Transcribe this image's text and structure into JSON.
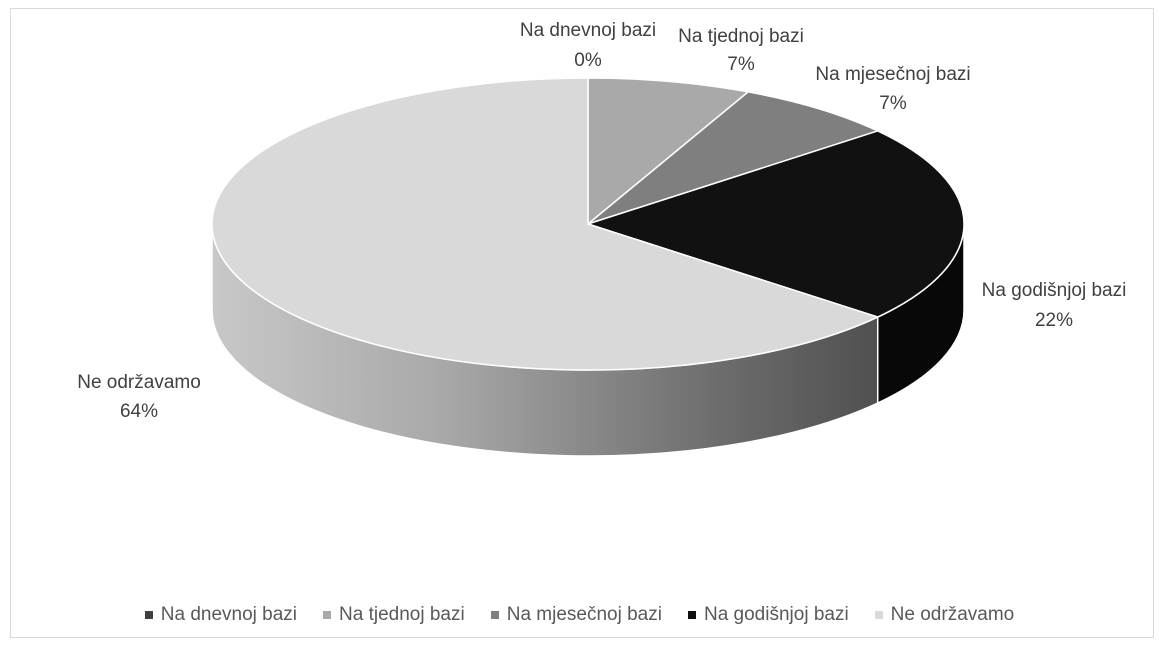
{
  "chart_data": {
    "type": "pie",
    "style": "3d",
    "categories": [
      "Na dnevnoj bazi",
      "Na tjednoj bazi",
      "Na mjesečnoj bazi",
      "Na godišnjoj bazi",
      "Ne održavamo"
    ],
    "values": [
      0,
      7,
      7,
      22,
      64
    ],
    "labels": [
      "0%",
      "7%",
      "7%",
      "22%",
      "64%"
    ],
    "colors": [
      "#3f3f3f",
      "#a9a9a9",
      "#7f7f7f",
      "#111111",
      "#d9d9d9"
    ],
    "legend_position": "bottom"
  },
  "legend": {
    "items": [
      {
        "label": "Na dnevnoj bazi",
        "color": "#3f3f3f"
      },
      {
        "label": "Na tjednoj bazi",
        "color": "#a9a9a9"
      },
      {
        "label": "Na mjesečnoj bazi",
        "color": "#7f7f7f"
      },
      {
        "label": "Na godišnjoj bazi",
        "color": "#111111"
      },
      {
        "label": "Ne održavamo",
        "color": "#d9d9d9"
      }
    ]
  },
  "data_labels": [
    {
      "name": "Na dnevnoj bazi",
      "value": "0%"
    },
    {
      "name": "Na tjednoj bazi",
      "value": "7%"
    },
    {
      "name": "Na mjesečnoj bazi",
      "value": "7%"
    },
    {
      "name": "Na godišnjoj bazi",
      "value": "22%"
    },
    {
      "name": "Ne održavamo",
      "value": "64%"
    }
  ]
}
